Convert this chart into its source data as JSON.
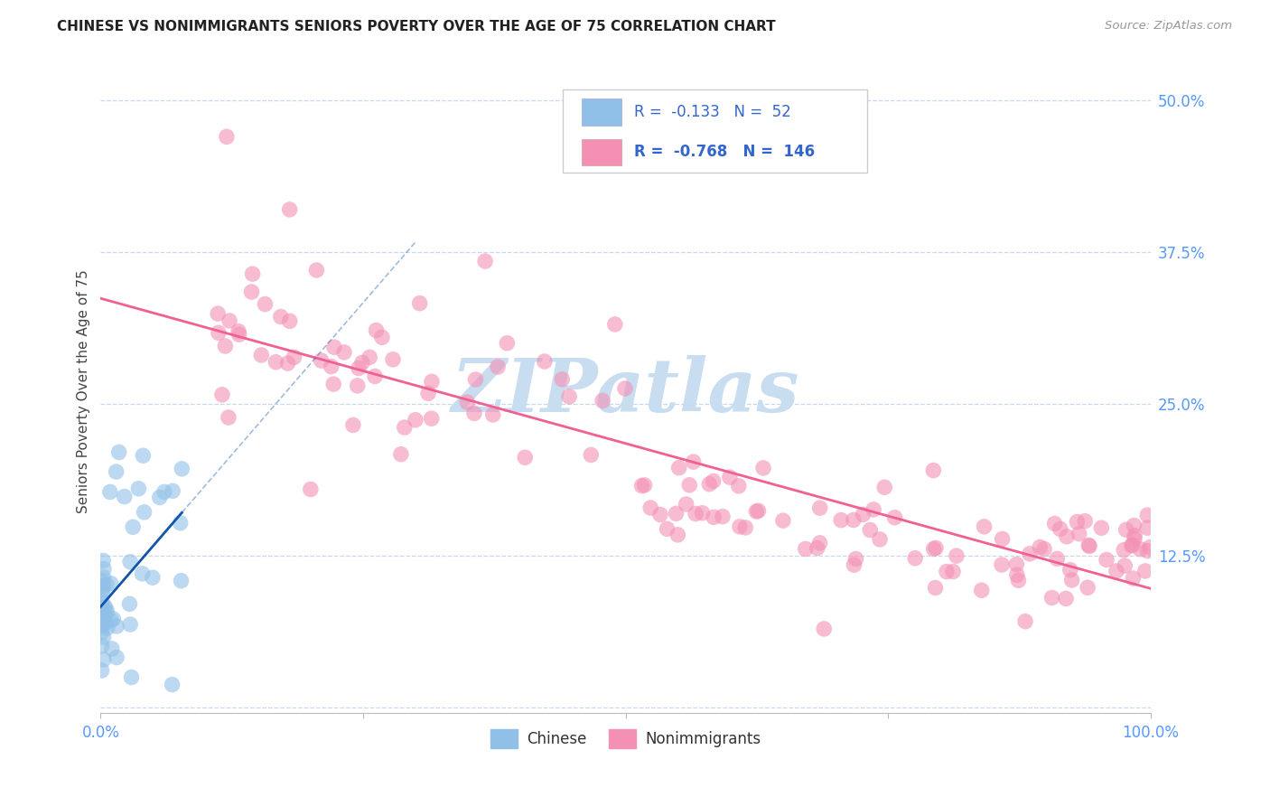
{
  "title": "CHINESE VS NONIMMIGRANTS SENIORS POVERTY OVER THE AGE OF 75 CORRELATION CHART",
  "source": "Source: ZipAtlas.com",
  "ylabel": "Seniors Poverty Over the Age of 75",
  "xlim": [
    0,
    1.0
  ],
  "ylim": [
    -0.005,
    0.525
  ],
  "ytick_vals": [
    0.0,
    0.125,
    0.25,
    0.375,
    0.5
  ],
  "ytick_labels_right": [
    "",
    "12.5%",
    "25.0%",
    "37.5%",
    "50.0%"
  ],
  "xtick_vals": [
    0.0,
    0.25,
    0.5,
    0.75,
    1.0
  ],
  "xtick_labels": [
    "0.0%",
    "",
    "",
    "",
    "100.0%"
  ],
  "legend_R1": "-0.133",
  "legend_N1": "52",
  "legend_R2": "-0.768",
  "legend_N2": "146",
  "chinese_color": "#90c0e8",
  "nonimmigrant_color": "#f490b4",
  "chinese_line_color": "#1155aa",
  "nonimmigrant_line_color": "#f06090",
  "grid_color": "#c8d8ec",
  "background_color": "#ffffff",
  "tick_label_color": "#5599ff",
  "title_color": "#222222",
  "source_color": "#999999",
  "watermark_color": "#c8ddf0",
  "marker_size": 160,
  "marker_alpha": 0.6
}
